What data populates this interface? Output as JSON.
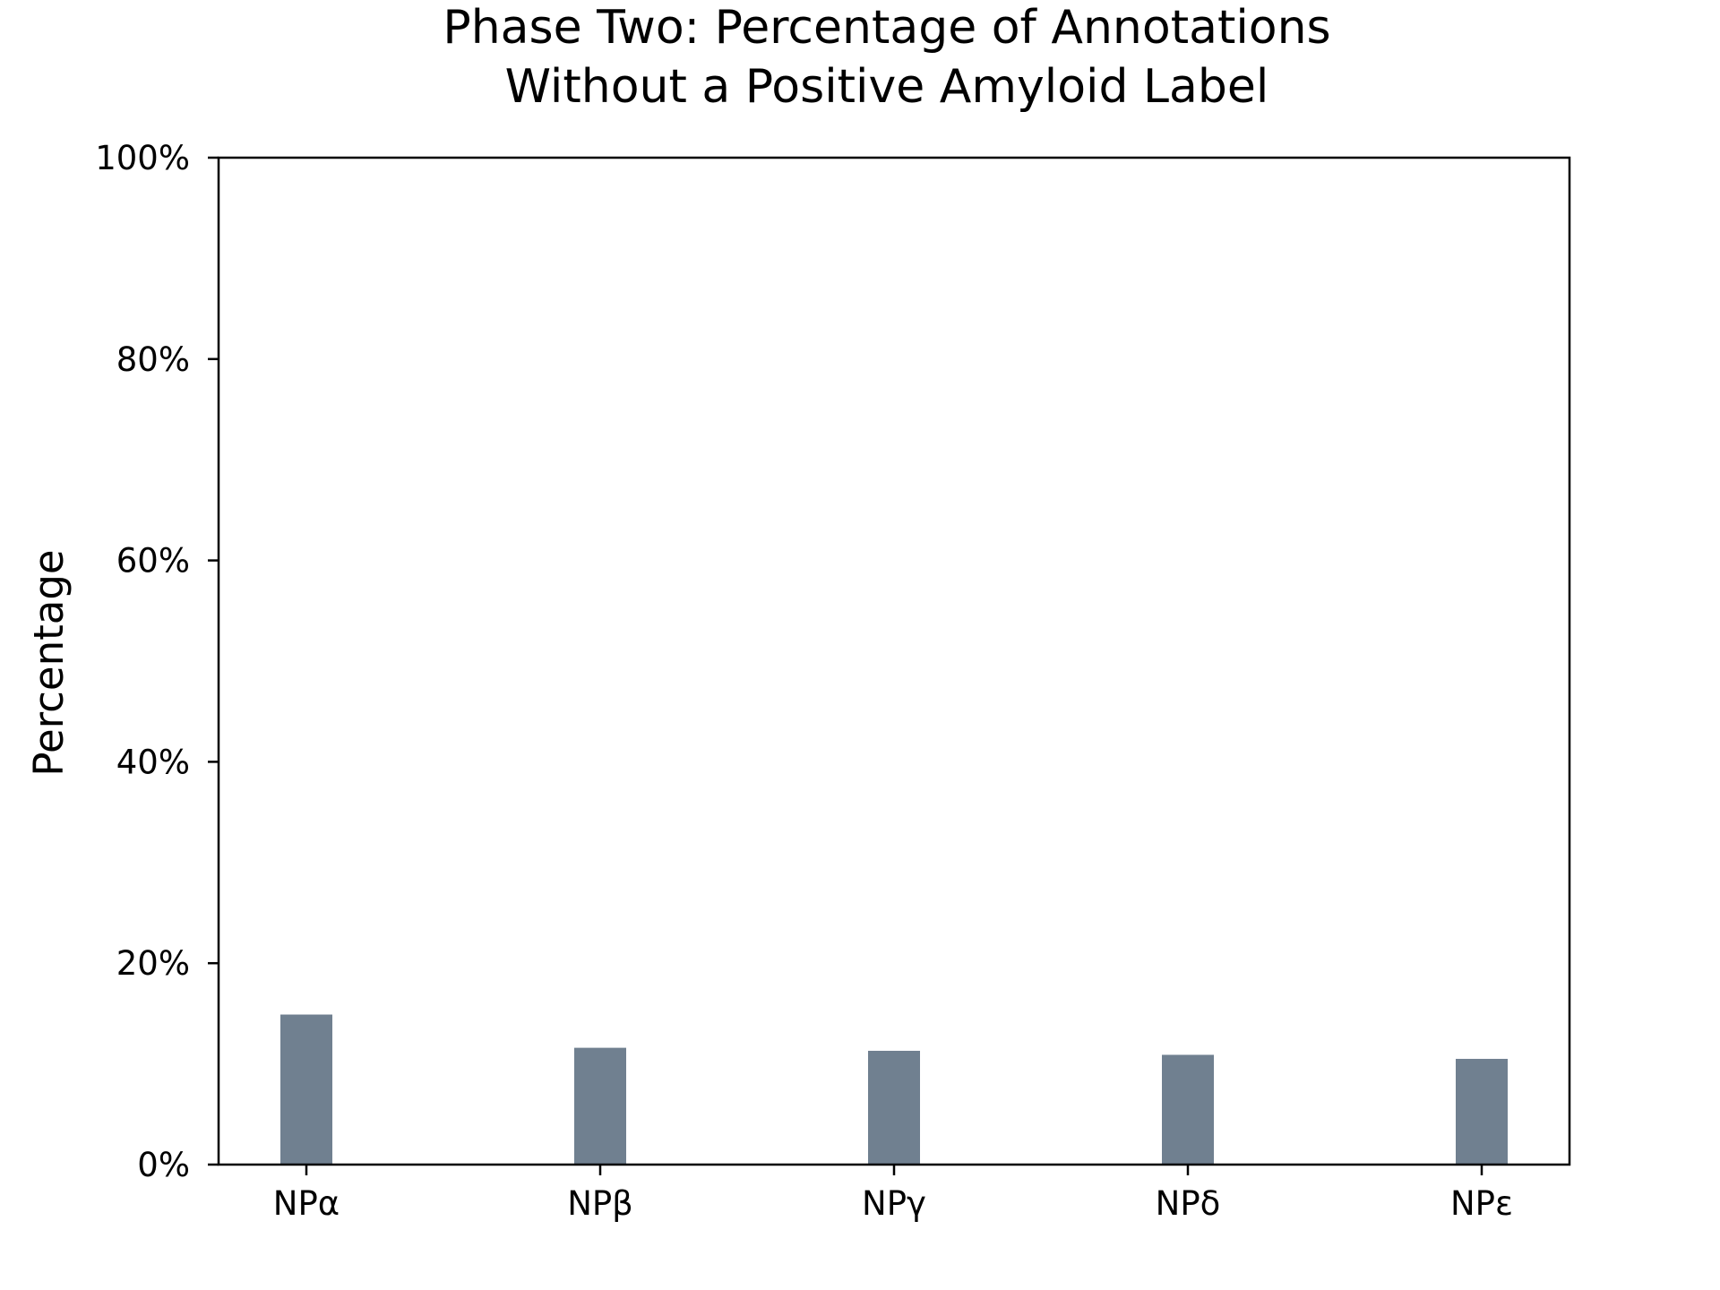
{
  "chart_data": {
    "type": "bar",
    "title_lines": [
      "Phase Two: Percentage of Annotations",
      "Without a Positive Amyloid Label"
    ],
    "xlabel": "",
    "ylabel": "Percentage",
    "categories": [
      "NPα",
      "NPβ",
      "NPγ",
      "NPδ",
      "NPε"
    ],
    "values": [
      14.9,
      11.6,
      11.3,
      10.9,
      10.5
    ],
    "ylim": [
      0,
      100
    ],
    "yticks": [
      0,
      20,
      40,
      60,
      80,
      100
    ],
    "ytick_labels": [
      "0%",
      "20%",
      "40%",
      "60%",
      "80%",
      "100%"
    ],
    "grid": false,
    "bar_color": "#708090"
  }
}
